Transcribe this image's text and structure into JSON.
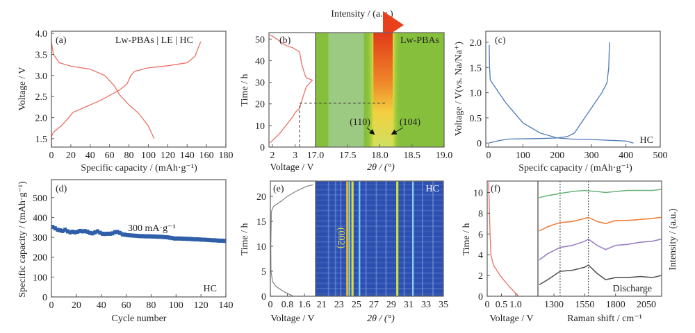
{
  "colorbar": {
    "label": "Intensity / (a.u.)",
    "colors": [
      "#1c3fa0",
      "#4fb0e0",
      "#7cc043",
      "#f2e23a",
      "#e8401c"
    ]
  },
  "chart_data": [
    {
      "id": "a",
      "type": "line",
      "panel_label": "(a)",
      "annotation": "Lw-PBAs | LE | HC",
      "xlabel": "Specific capacity / (mAh·g⁻¹)",
      "ylabel": "Voltage / V",
      "xlim": [
        0,
        180
      ],
      "ylim": [
        1.3,
        4.05
      ],
      "xticks": [
        0,
        20,
        40,
        60,
        80,
        100,
        120,
        140,
        160,
        180
      ],
      "yticks": [
        1.5,
        2.0,
        2.5,
        3.0,
        3.5,
        4.0
      ],
      "ytick_labels": [
        "1.5",
        "2.0",
        "2.5",
        "3.0",
        "3.5",
        "4.0"
      ],
      "series": [
        {
          "color": "#ec6f62",
          "x": [
            0,
            0,
            2,
            10,
            18,
            22,
            30,
            50,
            70,
            78,
            82,
            86,
            100,
            120,
            140,
            148,
            154
          ],
          "y": [
            1.3,
            1.55,
            1.65,
            1.8,
            2.0,
            2.12,
            2.2,
            2.4,
            2.65,
            2.8,
            3.0,
            3.1,
            3.18,
            3.23,
            3.3,
            3.45,
            3.8
          ]
        },
        {
          "color": "#ec6f62",
          "x": [
            0,
            2,
            8,
            20,
            40,
            55,
            65,
            70,
            80,
            90,
            100,
            106
          ],
          "y": [
            3.8,
            3.5,
            3.3,
            3.22,
            3.15,
            3.0,
            2.75,
            2.55,
            2.3,
            2.1,
            1.8,
            1.5
          ]
        }
      ]
    },
    {
      "id": "b",
      "type": "heatmap",
      "panel_label": "(b)",
      "annotation": "Lw-PBAs",
      "ylabel": "Time / h",
      "voltage": {
        "xlabel": "Voltage / V",
        "xlim": [
          1.85,
          3.9
        ],
        "xticks": [
          2,
          3
        ],
        "color": "#ec6f62",
        "x": [
          1.9,
          2.3,
          2.6,
          2.9,
          3.0,
          3.2,
          3.25,
          3.4,
          3.5,
          3.76,
          3.5,
          3.45,
          3.3,
          3.2,
          2.9,
          2.6,
          2.2,
          1.9
        ],
        "y": [
          2,
          6,
          10,
          14,
          16,
          18,
          20,
          25,
          28,
          31,
          32,
          33,
          38,
          44,
          46,
          47,
          50,
          52
        ]
      },
      "marker": {
        "time": 20.3,
        "voltage": 3.2,
        "two_theta": 18.1
      },
      "map": {
        "xlabel": "2θ / (°)",
        "xlim": [
          17.0,
          19.0
        ],
        "xticks": [
          17.0,
          17.5,
          18.0,
          18.5,
          19.0
        ],
        "xtick_labels": [
          "17.0",
          "17.5",
          "18.0",
          "18.5",
          "19.0"
        ],
        "background": "#86bf3c",
        "peak_center": 18.05,
        "peaks": [
          {
            "label": "(110)",
            "position": 17.95
          },
          {
            "label": "(104)",
            "position": 18.15
          }
        ]
      },
      "ylim": [
        0,
        53
      ],
      "yticks": [
        0,
        10,
        20,
        30,
        40,
        50
      ]
    },
    {
      "id": "c",
      "type": "line",
      "panel_label": "(c)",
      "annotation": "HC",
      "xlabel": "Specifc capacity / (mAh·g⁻¹)",
      "ylabel": "Voltage / V(vs. Na/Na⁺)",
      "xlim": [
        -8,
        500
      ],
      "ylim": [
        -0.08,
        2.22
      ],
      "xticks": [
        0,
        100,
        200,
        300,
        400,
        500
      ],
      "yticks": [
        0,
        0.5,
        1.0,
        1.5,
        2.0
      ],
      "ytick_labels": [
        "0",
        "0.5",
        "1.0",
        "1.5",
        "2.0"
      ],
      "series": [
        {
          "color": "#4d78b8",
          "x": [
            2,
            3,
            5,
            20,
            50,
            100,
            150,
            200,
            240,
            300,
            400,
            422
          ],
          "y": [
            1.95,
            1.5,
            1.25,
            1.1,
            0.8,
            0.4,
            0.2,
            0.1,
            0.08,
            0.07,
            0.04,
            0
          ]
        },
        {
          "color": "#4d78b8",
          "x": [
            0,
            30,
            60,
            150,
            200,
            230,
            250,
            280,
            300,
            330,
            345,
            350,
            352
          ],
          "y": [
            0,
            0.05,
            0.08,
            0.09,
            0.1,
            0.13,
            0.2,
            0.5,
            0.7,
            1.0,
            1.2,
            1.5,
            2.0
          ]
        }
      ]
    },
    {
      "id": "d",
      "type": "scatter",
      "panel_label": "(d)",
      "annotation": "HC",
      "rate_label": "300 mA·g⁻¹",
      "xlabel": "Cycle number",
      "ylabel": "Specific capacity / (mAh·g⁻¹)",
      "xlim": [
        0,
        140
      ],
      "ylim": [
        0,
        590
      ],
      "xticks": [
        0,
        20,
        40,
        60,
        80,
        100,
        120,
        140
      ],
      "yticks": [
        0,
        100,
        200,
        300,
        400,
        500
      ],
      "color": "#2f5fa8",
      "x": [
        1,
        3,
        5,
        7,
        9,
        11,
        13,
        15,
        17,
        19,
        21,
        23,
        25,
        27,
        29,
        31,
        33,
        35,
        37,
        39,
        41,
        43,
        45,
        47,
        49,
        51,
        53,
        55,
        57,
        59,
        61,
        63,
        65,
        67,
        69,
        71,
        73,
        75,
        77,
        79,
        81,
        83,
        85,
        87,
        89,
        91,
        93,
        95,
        97,
        99,
        101,
        103,
        105,
        107,
        109,
        111,
        113,
        115,
        117,
        119,
        121,
        123,
        125,
        127,
        129,
        131,
        133,
        135,
        137,
        139
      ],
      "y": [
        352,
        345,
        338,
        335,
        332,
        338,
        330,
        325,
        328,
        325,
        328,
        332,
        330,
        331,
        328,
        322,
        320,
        325,
        330,
        323,
        318,
        317,
        318,
        318,
        320,
        326,
        327,
        322,
        315,
        313,
        311,
        310,
        309,
        308,
        307,
        306,
        306,
        305,
        305,
        305,
        304,
        304,
        303,
        303,
        302,
        301,
        300,
        298,
        296,
        294,
        294,
        294,
        293,
        293,
        292,
        292,
        291,
        290,
        290,
        289,
        288,
        288,
        287,
        286,
        285,
        285,
        284,
        283,
        283,
        282
      ]
    },
    {
      "id": "e",
      "type": "heatmap",
      "panel_label": "(e)",
      "annotation": "HC",
      "ylabel": "Time / h",
      "voltage": {
        "xlabel": "Voltage / V",
        "xlim": [
          0,
          2.12
        ],
        "xticks": [
          0,
          0.8,
          1.6
        ],
        "xtick_labels": [
          "0",
          "0.8",
          "1.6"
        ],
        "color": "#8a8a8a",
        "x": [
          1.08,
          0.6,
          0.25,
          0.1,
          0.03,
          0.02,
          0.05,
          0.15,
          0.5,
          0.8,
          1.2,
          1.7,
          2.0
        ],
        "y": [
          0,
          1,
          2,
          3,
          5,
          10,
          17,
          18,
          19,
          20,
          21,
          22,
          22.3
        ]
      },
      "map": {
        "xlabel": "2θ / (°)",
        "xlim": [
          20.3,
          35
        ],
        "xticks": [
          21,
          23,
          25,
          27,
          29,
          31,
          33,
          35
        ],
        "background": "#2d50b0",
        "peak_label": "(002)",
        "lines": [
          {
            "position": 23.95,
            "color": "#e8b030",
            "strong": true
          },
          {
            "position": 24.2,
            "color": "#6cc8e8",
            "strong": false
          },
          {
            "position": 24.55,
            "color": "#d8dc40",
            "strong": true
          },
          {
            "position": 25.35,
            "color": "#78c4f0",
            "strong": false
          },
          {
            "position": 29.7,
            "color": "#c8e040",
            "strong": true
          },
          {
            "position": 31.5,
            "color": "#86ccf2",
            "strong": false
          }
        ],
        "faint_lines": [
          21.8,
          22.6,
          23.2,
          26.1,
          27.3,
          28.4,
          30.5,
          32.6,
          33.8
        ]
      },
      "ylim": [
        0,
        23.05
      ],
      "yticks": [
        0,
        5,
        10,
        15,
        20
      ]
    },
    {
      "id": "f",
      "type": "line",
      "panel_label": "(f)",
      "annotation": "Discharge",
      "ylabel": "Time / h",
      "ylabel_right": "Intensity / (a.u.)",
      "ylim": [
        0,
        11.1
      ],
      "yticks": [
        0,
        2,
        4,
        6,
        8,
        10
      ],
      "voltage": {
        "xlabel": "Voltage / V",
        "xlim": [
          0,
          1.78
        ],
        "xticks": [
          0,
          0.5,
          1.0
        ],
        "xtick_labels": [
          "0",
          "0.5",
          "1.0"
        ],
        "color": "#ec6f62",
        "x": [
          1.1,
          0.75,
          0.45,
          0.22,
          0.13,
          0.1,
          0.08,
          0.06,
          0.05
        ],
        "y": [
          0,
          1,
          2,
          3,
          4,
          6,
          8,
          10,
          11
        ]
      },
      "raman": {
        "xlabel": "Raman shift / cm⁻¹",
        "xlim": [
          1170,
          2174
        ],
        "xticks": [
          1300,
          1550,
          1800,
          2050
        ],
        "reference_lines": [
          1350,
          1580
        ],
        "x": [
          1180,
          1250,
          1350,
          1450,
          1550,
          1580,
          1650,
          1720,
          1800,
          1900,
          2000,
          2100,
          2170
        ],
        "series": [
          {
            "color": "#555555",
            "y": [
              1.1,
              1.6,
              2.4,
              2.5,
              2.8,
              3.0,
              2.2,
              1.6,
              1.8,
              1.8,
              1.9,
              1.8,
              2.0
            ]
          },
          {
            "color": "#9b7fc9",
            "y": [
              3.5,
              4.1,
              4.7,
              4.9,
              5.3,
              5.5,
              4.9,
              4.5,
              4.9,
              5.0,
              5.2,
              5.3,
              5.5
            ]
          },
          {
            "color": "#f07f3c",
            "y": [
              6.3,
              6.7,
              7.1,
              7.2,
              7.5,
              7.6,
              7.2,
              7.0,
              7.3,
              7.3,
              7.4,
              7.5,
              7.6
            ]
          },
          {
            "color": "#6ab47c",
            "y": [
              9.5,
              9.7,
              9.9,
              10.1,
              10.2,
              10.15,
              10.1,
              10.0,
              10.1,
              10.2,
              10.2,
              10.2,
              10.3
            ]
          }
        ]
      }
    }
  ]
}
